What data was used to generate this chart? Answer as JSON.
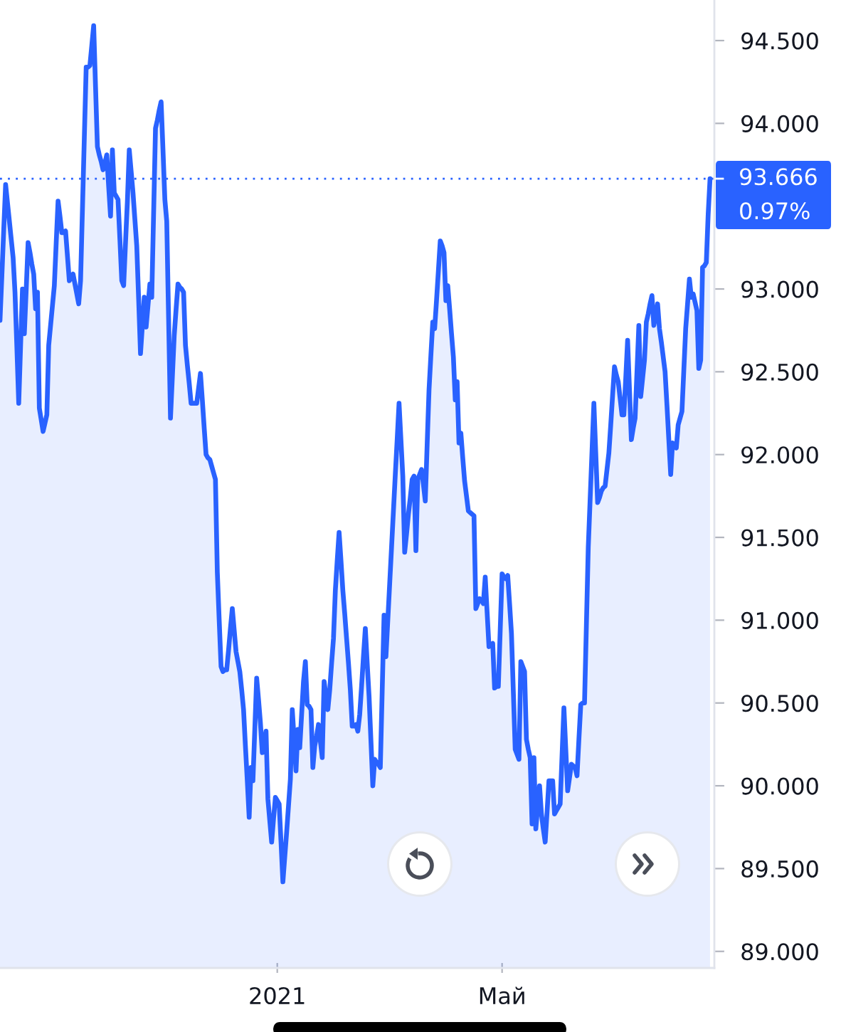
{
  "chart_data": {
    "type": "area",
    "categories": [
      null,
      null,
      null,
      null,
      null,
      null,
      null,
      null,
      null,
      null,
      null,
      null,
      null,
      null,
      null,
      null,
      null,
      null,
      null,
      null,
      null,
      null,
      null,
      null,
      null,
      null,
      null,
      null,
      null,
      null,
      null,
      null,
      null,
      null,
      null,
      null,
      null,
      null,
      null,
      null,
      null,
      null,
      null,
      null,
      null,
      null,
      null,
      null,
      null,
      null,
      null,
      null,
      null,
      null,
      null,
      null,
      null,
      null,
      null,
      null,
      null,
      null,
      null,
      null,
      null,
      null,
      null,
      null,
      null,
      null,
      null,
      null,
      null,
      null,
      null,
      null,
      null,
      null,
      null,
      null,
      null,
      null,
      null,
      null,
      null,
      null,
      null,
      null,
      null,
      null,
      null,
      null,
      null,
      null,
      null,
      null,
      null,
      null,
      null,
      null,
      null,
      null,
      null,
      null,
      null,
      null,
      null,
      null,
      null,
      null,
      null,
      null,
      null,
      null,
      null,
      null,
      null,
      null,
      null,
      null,
      null,
      null,
      null,
      null,
      null,
      null,
      null,
      null,
      null,
      null,
      null,
      null,
      null,
      null,
      null,
      null,
      null,
      null,
      null,
      null,
      null,
      null,
      null,
      null,
      null,
      null,
      null,
      null,
      "2021",
      null,
      null,
      null,
      null,
      null,
      null,
      null,
      null,
      null,
      null,
      null,
      null,
      null,
      null,
      null,
      null,
      null,
      null,
      null,
      null,
      null,
      null,
      null,
      null,
      null,
      null,
      null,
      null,
      null,
      null,
      null,
      null,
      null,
      null,
      null,
      null,
      null,
      null,
      null,
      null,
      null,
      null,
      null,
      null,
      null,
      null,
      null,
      null,
      null,
      null,
      null,
      null,
      null,
      null,
      null,
      null,
      null,
      null,
      null,
      null,
      null,
      null,
      null,
      null,
      null,
      null,
      null,
      null,
      null,
      null,
      null,
      null,
      null,
      null,
      null,
      null,
      null,
      null,
      null,
      null,
      null,
      null,
      null,
      null,
      null,
      null,
      null,
      null,
      null,
      null,
      null,
      null,
      null,
      null,
      null,
      null,
      null,
      null,
      null,
      null,
      null,
      null,
      null,
      null,
      null,
      null,
      null,
      null,
      null,
      null,
      null,
      null,
      null,
      null,
      null,
      null,
      null,
      null,
      null,
      "Май",
      null,
      null,
      null,
      null,
      null,
      null,
      null,
      null,
      null,
      null,
      null,
      null,
      null,
      null,
      null,
      null,
      null,
      null,
      null,
      null,
      null,
      null,
      null,
      null,
      null,
      null,
      null,
      null,
      null,
      null,
      null,
      null,
      null,
      null,
      null,
      null,
      null,
      null,
      null,
      null,
      null,
      null,
      null,
      null,
      null,
      null,
      null,
      null,
      null,
      null,
      null,
      null,
      null,
      null,
      null,
      null,
      null,
      null,
      null,
      null,
      null,
      null,
      null,
      null,
      null,
      null,
      null,
      null,
      null,
      null,
      null,
      null,
      null,
      null,
      null,
      null,
      null,
      null,
      null,
      null,
      null,
      null,
      null,
      null,
      null,
      null,
      null,
      null,
      null,
      null,
      null,
      null,
      null,
      null,
      null,
      null,
      null,
      null,
      null,
      null,
      null,
      null,
      null,
      null,
      null,
      null,
      null,
      null,
      null,
      null,
      null
    ],
    "series": [
      {
        "color": "#2962ff",
        "values": [
          92.81,
          93.08,
          93.36,
          93.63,
          93.52,
          93.41,
          93.3,
          93.19,
          92.98,
          92.65,
          92.31,
          92.66,
          93.0,
          92.73,
          93.0,
          93.28,
          93.22,
          93.15,
          93.09,
          92.88,
          92.98,
          92.28,
          92.21,
          92.14,
          92.19,
          92.24,
          92.66,
          92.78,
          92.9,
          93.02,
          93.28,
          93.53,
          93.44,
          93.34,
          93.34,
          93.35,
          93.2,
          93.05,
          93.07,
          93.09,
          93.03,
          92.97,
          92.91,
          93.05,
          93.48,
          93.91,
          94.34,
          94.34,
          94.35,
          94.47,
          94.59,
          94.22,
          93.86,
          93.81,
          93.77,
          93.72,
          93.76,
          93.81,
          93.62,
          93.44,
          93.84,
          93.58,
          93.56,
          93.54,
          93.3,
          93.05,
          93.02,
          93.28,
          93.53,
          93.84,
          93.71,
          93.58,
          93.42,
          93.26,
          92.94,
          92.61,
          92.78,
          92.95,
          92.77,
          92.9,
          93.03,
          92.95,
          93.46,
          93.97,
          94.02,
          94.08,
          94.13,
          93.84,
          93.54,
          93.41,
          92.82,
          92.22,
          92.47,
          92.72,
          92.88,
          93.03,
          93.01,
          93.0,
          92.98,
          92.66,
          92.54,
          92.43,
          92.31,
          92.31,
          92.31,
          92.31,
          92.4,
          92.49,
          92.33,
          92.16,
          92.0,
          91.98,
          91.97,
          91.93,
          91.89,
          91.85,
          91.29,
          91.0,
          90.72,
          90.69,
          90.7,
          90.7,
          90.82,
          90.95,
          91.07,
          90.94,
          90.81,
          90.75,
          90.69,
          90.58,
          90.46,
          90.24,
          90.03,
          89.81,
          90.11,
          90.03,
          90.34,
          90.65,
          90.52,
          90.38,
          90.2,
          90.26,
          90.33,
          89.92,
          89.79,
          89.66,
          89.8,
          89.93,
          89.91,
          89.89,
          89.66,
          89.42,
          89.57,
          89.72,
          89.88,
          90.04,
          90.46,
          90.28,
          90.09,
          90.34,
          90.23,
          90.43,
          90.63,
          90.75,
          90.49,
          90.48,
          90.46,
          90.11,
          90.24,
          90.3,
          90.37,
          90.27,
          90.17,
          90.63,
          90.54,
          90.46,
          90.58,
          90.74,
          90.89,
          91.18,
          91.36,
          91.53,
          91.36,
          91.18,
          91.04,
          90.89,
          90.74,
          90.58,
          90.36,
          90.36,
          90.37,
          90.33,
          90.43,
          90.6,
          90.78,
          90.95,
          90.74,
          90.54,
          90.27,
          90.0,
          90.16,
          90.14,
          90.13,
          90.11,
          90.57,
          91.03,
          90.78,
          91.0,
          91.22,
          91.44,
          91.66,
          91.88,
          92.09,
          92.31,
          92.09,
          91.87,
          91.41,
          91.52,
          91.64,
          91.74,
          91.85,
          91.87,
          91.42,
          91.85,
          91.88,
          91.91,
          91.82,
          91.72,
          92.06,
          92.39,
          92.6,
          92.8,
          92.76,
          92.93,
          93.11,
          93.29,
          93.26,
          93.22,
          92.93,
          93.02,
          92.88,
          92.73,
          92.59,
          92.33,
          92.44,
          92.07,
          92.13,
          91.98,
          91.84,
          91.75,
          91.66,
          91.65,
          91.64,
          91.63,
          91.07,
          91.1,
          91.13,
          91.12,
          91.1,
          91.26,
          91.05,
          90.84,
          90.85,
          90.86,
          90.59,
          90.6,
          90.6,
          90.94,
          91.28,
          91.26,
          91.25,
          91.27,
          91.1,
          90.92,
          90.57,
          90.22,
          90.19,
          90.16,
          90.75,
          90.72,
          90.69,
          90.28,
          90.22,
          90.17,
          89.77,
          90.17,
          89.74,
          89.87,
          90.0,
          89.83,
          89.74,
          89.66,
          89.84,
          90.03,
          90.03,
          90.03,
          89.83,
          89.85,
          89.87,
          89.89,
          90.18,
          90.47,
          90.22,
          89.97,
          90.05,
          90.13,
          90.12,
          90.11,
          90.06,
          90.28,
          90.49,
          90.5,
          90.5,
          90.97,
          91.44,
          91.73,
          92.02,
          92.31,
          92.01,
          91.71,
          91.74,
          91.78,
          91.8,
          91.81,
          91.91,
          92.01,
          92.18,
          92.36,
          92.53,
          92.48,
          92.44,
          92.34,
          92.24,
          92.24,
          92.46,
          92.69,
          92.39,
          92.09,
          92.16,
          92.22,
          92.5,
          92.78,
          92.35,
          92.46,
          92.57,
          92.8,
          92.85,
          92.91,
          92.96,
          92.78,
          92.84,
          92.91,
          92.76,
          92.68,
          92.59,
          92.5,
          92.3,
          92.09,
          91.88,
          92.07,
          92.06,
          92.04,
          92.18,
          92.22,
          92.26,
          92.51,
          92.76,
          92.91,
          93.06,
          92.95,
          92.97,
          92.92,
          92.87,
          92.52,
          92.57,
          93.13,
          93.14,
          93.16,
          93.45,
          93.666
        ]
      }
    ],
    "ylim": [
      88.9,
      94.745
    ],
    "yticks": [
      {
        "value": 89,
        "label": "89.000"
      },
      {
        "value": 89.5,
        "label": "89.500"
      },
      {
        "value": 90,
        "label": "90.000"
      },
      {
        "value": 90.5,
        "label": "90.500"
      },
      {
        "value": 91,
        "label": "91.000"
      },
      {
        "value": 91.5,
        "label": "91.500"
      },
      {
        "value": 92,
        "label": "92.000"
      },
      {
        "value": 92.5,
        "label": "92.500"
      },
      {
        "value": 93,
        "label": "93.000"
      },
      {
        "value": 94,
        "label": "94.000"
      },
      {
        "value": 94.5,
        "label": "94.500"
      }
    ],
    "ref_lines": [
      {
        "axis": "y",
        "value": 93.666,
        "label": "93.666",
        "color": "#2962ff",
        "line_style": "dotted"
      }
    ],
    "annotations": [
      "0.97%"
    ]
  }
}
